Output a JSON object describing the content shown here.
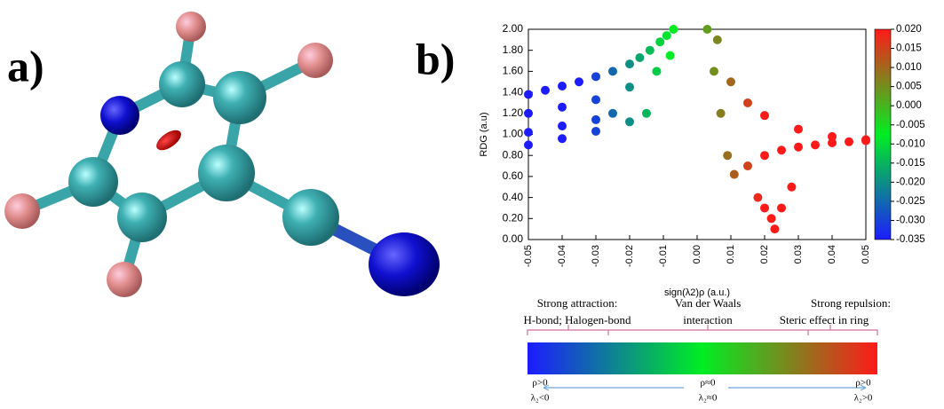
{
  "panel_labels": [
    "a)",
    "b)"
  ],
  "chart_data": {
    "type": "scatter",
    "xlabel": "sign(λ2)ρ (a.u.)",
    "ylabel": "RDG (a.u)",
    "xlim": [
      -0.05,
      0.05
    ],
    "ylim": [
      0,
      2
    ],
    "xticks": [
      -0.05,
      -0.04,
      -0.03,
      -0.02,
      -0.01,
      {
        "value": 0,
        "label": "0.00"
      },
      0.01,
      0.02,
      0.03,
      0.04,
      0.05
    ],
    "yticks": [
      {
        "value": 0,
        "label": "0.00"
      },
      {
        "value": 0.2,
        "label": "0.20"
      },
      {
        "value": 0.4,
        "label": "0.40"
      },
      {
        "value": 0.6,
        "label": "0.60"
      },
      {
        "value": 0.8,
        "label": "0.80"
      },
      {
        "value": 1,
        "label": "1.00"
      },
      {
        "value": 1.2,
        "label": "1.20"
      },
      {
        "value": 1.4,
        "label": "1.40"
      },
      {
        "value": 1.6,
        "label": "1.60"
      },
      {
        "value": 1.8,
        "label": "1.80"
      },
      {
        "value": 2,
        "label": "2.00"
      }
    ],
    "x": [
      -0.05,
      -0.045,
      -0.04,
      -0.035,
      -0.03,
      -0.025,
      -0.02,
      -0.017,
      -0.014,
      -0.011,
      -0.009,
      -0.007,
      -0.05,
      -0.04,
      -0.03,
      -0.02,
      -0.012,
      -0.008,
      -0.05,
      -0.04,
      -0.03,
      -0.025,
      -0.05,
      -0.04,
      -0.03,
      -0.02,
      -0.015,
      0.003,
      0.005,
      0.007,
      0.009,
      0.011,
      0.015,
      0.02,
      0.025,
      0.03,
      0.035,
      0.04,
      0.045,
      0.05,
      0.006,
      0.01,
      0.015,
      0.02,
      0.03,
      0.04,
      0.05,
      0.018,
      0.02,
      0.022,
      0.023,
      0.025,
      0.028
    ],
    "values": [
      1.38,
      1.42,
      1.46,
      1.5,
      1.55,
      1.6,
      1.67,
      1.73,
      1.8,
      1.88,
      1.94,
      2.0,
      1.2,
      1.26,
      1.33,
      1.45,
      1.6,
      1.75,
      1.02,
      1.08,
      1.14,
      1.2,
      0.9,
      0.96,
      1.03,
      1.12,
      1.2,
      2.0,
      1.6,
      1.2,
      0.8,
      0.62,
      0.7,
      0.8,
      0.85,
      0.88,
      0.9,
      0.92,
      0.93,
      0.94,
      1.9,
      1.5,
      1.3,
      1.18,
      1.05,
      0.98,
      0.95,
      0.4,
      0.3,
      0.2,
      0.1,
      0.3,
      0.5
    ],
    "colorbar": {
      "lim": [
        -0.035,
        0.02
      ],
      "colors": [
        "#1c1cff",
        "#00ee22",
        "#ff1a1a"
      ],
      "ticks": [
        {
          "value": 0.02,
          "label": "0.020"
        },
        {
          "value": 0.015,
          "label": "0.015"
        },
        {
          "value": 0.01,
          "label": "0.010"
        },
        {
          "value": 0.005,
          "label": "0.005"
        },
        {
          "value": 0,
          "label": "0.000"
        },
        {
          "value": -0.005,
          "label": "-0.005"
        },
        {
          "value": -0.01,
          "label": "-0.010"
        },
        {
          "value": -0.015,
          "label": "-0.015"
        },
        {
          "value": -0.02,
          "label": "-0.020"
        },
        {
          "value": -0.025,
          "label": "-0.025"
        },
        {
          "value": -0.03,
          "label": "-0.030"
        },
        {
          "value": -0.035,
          "label": "-0.035"
        }
      ]
    }
  },
  "scale_bar": {
    "top": [
      "Strong attraction:",
      "H-bond; Halogen-bond",
      "Van der Waals",
      "interaction",
      "Strong repulsion:",
      "Steric effect in ring"
    ],
    "bottom": [
      "ρ>0",
      "λ₂<0",
      "ρ≈0",
      "λ₂≈0",
      "ρ>0",
      "λ₂>0"
    ]
  }
}
